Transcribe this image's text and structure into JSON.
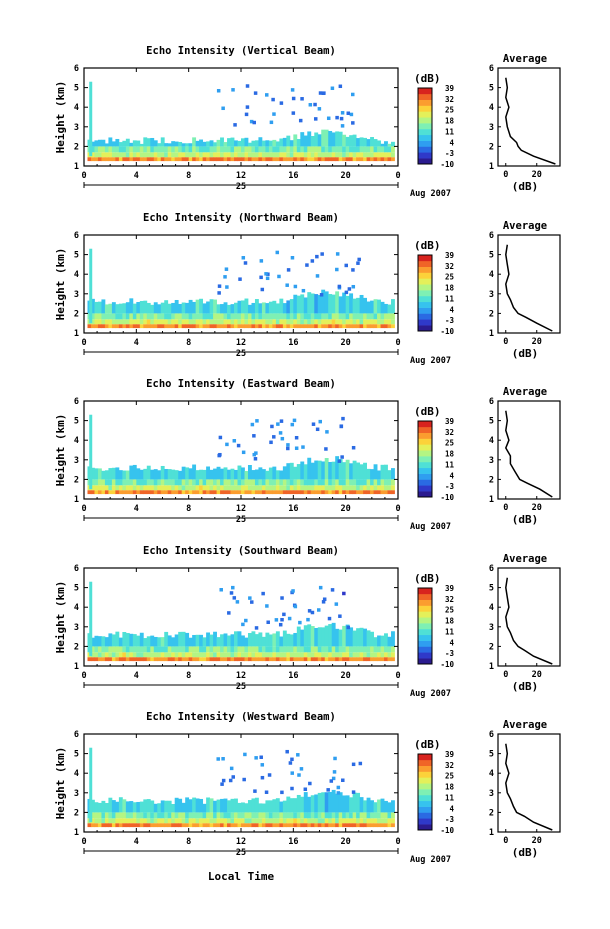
{
  "figure": {
    "xlabel_bottom": "Local Time",
    "avg_title": "Average",
    "day_label": "25",
    "month_label": "Aug 2007",
    "colorbar_unit": "(dB)",
    "avg_xlabel": "(dB)"
  },
  "colorbar": {
    "ticks": [
      "39",
      "32",
      "25",
      "18",
      "11",
      "4",
      "-3",
      "-10"
    ],
    "colors": [
      "#2b1b8f",
      "#2f39c9",
      "#2a6ae3",
      "#2f9ef0",
      "#36c3ee",
      "#4fe0d6",
      "#7ef0b4",
      "#b4f583",
      "#e4f05a",
      "#fcd23a",
      "#fb9d2f",
      "#f06427",
      "#d8231e"
    ]
  },
  "chart_data": [
    {
      "type": "heatmap",
      "title": "Echo Intensity (Vertical Beam)",
      "xlabel": "Local Time",
      "ylabel": "Height (km)",
      "xticks": [
        "0",
        "4",
        "8",
        "12",
        "16",
        "20",
        "0"
      ],
      "xlim": [
        0,
        24
      ],
      "ylim": [
        1,
        6
      ],
      "yticks": [
        1,
        2,
        3,
        4,
        5,
        6
      ],
      "zunit": "dB",
      "zrange": [
        -10,
        39
      ],
      "boundary_layer_top_km": 2.3,
      "average_profile": {
        "xlabel": "(dB)",
        "xticks": [
          0,
          20
        ],
        "xlim": [
          -5,
          35
        ],
        "height_km": [
          1.1,
          1.5,
          1.8,
          2.0,
          2.2,
          2.5,
          3.0,
          3.5,
          4.0,
          4.5,
          5.0,
          5.5
        ],
        "db": [
          32,
          18,
          10,
          8,
          7,
          3,
          1,
          0,
          2,
          0,
          1,
          0
        ]
      }
    },
    {
      "type": "heatmap",
      "title": "Echo Intensity (Northward Beam)",
      "xlabel": "Local Time",
      "ylabel": "Height (km)",
      "xticks": [
        "0",
        "4",
        "8",
        "12",
        "16",
        "20",
        "0"
      ],
      "xlim": [
        0,
        24
      ],
      "ylim": [
        1,
        6
      ],
      "yticks": [
        1,
        2,
        3,
        4,
        5,
        6
      ],
      "zunit": "dB",
      "zrange": [
        -10,
        39
      ],
      "boundary_layer_top_km": 2.6,
      "average_profile": {
        "xlabel": "(dB)",
        "xticks": [
          0,
          20
        ],
        "xlim": [
          -5,
          35
        ],
        "height_km": [
          1.1,
          1.5,
          1.8,
          2.0,
          2.3,
          2.7,
          3.0,
          3.5,
          4.0,
          4.5,
          5.0,
          5.5
        ],
        "db": [
          30,
          20,
          13,
          8,
          5,
          3,
          1,
          0,
          2,
          1,
          0,
          1
        ]
      }
    },
    {
      "type": "heatmap",
      "title": "Echo Intensity (Eastward Beam)",
      "xlabel": "Local Time",
      "ylabel": "Height (km)",
      "xticks": [
        "0",
        "4",
        "8",
        "12",
        "16",
        "20",
        "0"
      ],
      "xlim": [
        0,
        24
      ],
      "ylim": [
        1,
        6
      ],
      "yticks": [
        1,
        2,
        3,
        4,
        5,
        6
      ],
      "zunit": "dB",
      "zrange": [
        -10,
        39
      ],
      "boundary_layer_top_km": 2.6,
      "average_profile": {
        "xlabel": "(dB)",
        "xticks": [
          0,
          20
        ],
        "xlim": [
          -5,
          35
        ],
        "height_km": [
          1.1,
          1.5,
          1.8,
          2.0,
          2.4,
          2.8,
          3.2,
          3.6,
          4.0,
          4.5,
          5.0,
          5.5
        ],
        "db": [
          30,
          22,
          14,
          9,
          6,
          3,
          3,
          0,
          2,
          0,
          1,
          0
        ]
      }
    },
    {
      "type": "heatmap",
      "title": "Echo Intensity (Southward Beam)",
      "xlabel": "Local Time",
      "ylabel": "Height (km)",
      "xticks": [
        "0",
        "4",
        "8",
        "12",
        "16",
        "20",
        "0"
      ],
      "xlim": [
        0,
        24
      ],
      "ylim": [
        1,
        6
      ],
      "yticks": [
        1,
        2,
        3,
        4,
        5,
        6
      ],
      "zunit": "dB",
      "zrange": [
        -10,
        39
      ],
      "boundary_layer_top_km": 2.6,
      "average_profile": {
        "xlabel": "(dB)",
        "xticks": [
          0,
          20
        ],
        "xlim": [
          -5,
          35
        ],
        "height_km": [
          1.1,
          1.5,
          1.8,
          2.0,
          2.3,
          2.7,
          3.0,
          3.5,
          4.0,
          4.5,
          5.0,
          5.5
        ],
        "db": [
          30,
          18,
          12,
          8,
          5,
          3,
          1,
          0,
          2,
          1,
          0,
          1
        ]
      }
    },
    {
      "type": "heatmap",
      "title": "Echo Intensity (Westward Beam)",
      "xlabel": "Local Time",
      "ylabel": "Height (km)",
      "xticks": [
        "0",
        "4",
        "8",
        "12",
        "16",
        "20",
        "0"
      ],
      "xlim": [
        0,
        24
      ],
      "ylim": [
        1,
        6
      ],
      "yticks": [
        1,
        2,
        3,
        4,
        5,
        6
      ],
      "zunit": "dB",
      "zrange": [
        -10,
        39
      ],
      "boundary_layer_top_km": 2.6,
      "average_profile": {
        "xlabel": "(dB)",
        "xticks": [
          0,
          20
        ],
        "xlim": [
          -5,
          35
        ],
        "height_km": [
          1.1,
          1.5,
          1.8,
          2.0,
          2.3,
          2.7,
          3.0,
          3.5,
          4.0,
          4.5,
          5.0,
          5.5
        ],
        "db": [
          30,
          18,
          12,
          7,
          5,
          3,
          1,
          0,
          2,
          0,
          1,
          0
        ]
      }
    }
  ]
}
